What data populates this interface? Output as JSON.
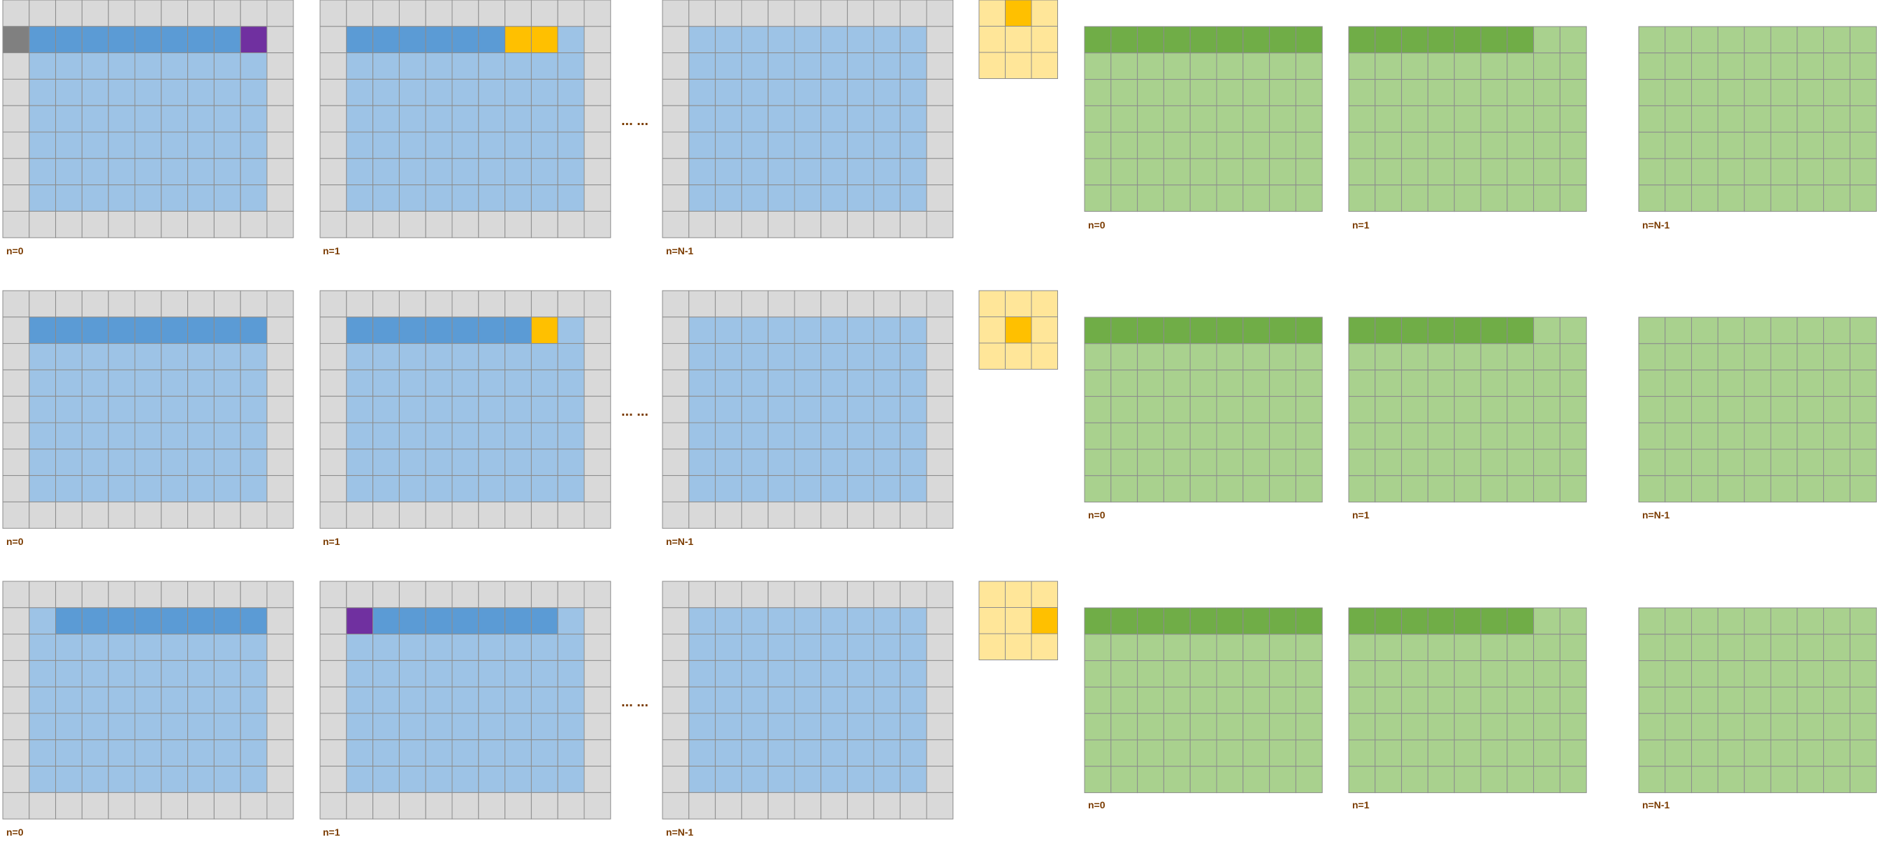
{
  "colors": {
    "pad": "#d9d9d9",
    "input_light": "#9dc3e6",
    "input_dark": "#5b9bd5",
    "kernel_light": "#ffe699",
    "kernel_active": "#ffc000",
    "output_light": "#a9d18e",
    "output_dark": "#70ad47",
    "purple": "#7030a0",
    "gray": "#808080",
    "grid_line": "#8c8c8c",
    "text": "#7a3b00"
  },
  "rows": [
    {
      "input_labels": [
        "n=0",
        "n=1",
        "n=N-1"
      ],
      "output_labels": [
        "n=0",
        "n=1",
        "n=N-1"
      ],
      "ellipsis": "... ...",
      "kernel_active": [
        0,
        1
      ],
      "in0_highlight": {
        "dark_from": 1,
        "dark_to": 8,
        "purple": 9,
        "gray": 0
      },
      "in1_highlight": {
        "dark_from": 1,
        "dark_to": 6,
        "yellow": [
          7,
          8
        ],
        "purple": null
      }
    },
    {
      "input_labels": [
        "n=0",
        "n=1",
        "n=N-1"
      ],
      "output_labels": [
        "n=0",
        "n=1",
        "n=N-1"
      ],
      "ellipsis": "... ...",
      "kernel_active": [
        1,
        1
      ],
      "in0_highlight": {
        "dark_from": 1,
        "dark_to": 9,
        "purple": null,
        "gray": null
      },
      "in1_highlight": {
        "dark_from": 1,
        "dark_to": 7,
        "yellow": [
          8
        ],
        "purple": null
      }
    },
    {
      "input_labels": [
        "n=0",
        "n=1",
        "n=N-1"
      ],
      "output_labels": [
        "n=0",
        "n=1",
        "n=N-1"
      ],
      "ellipsis": "... ...",
      "kernel_active": [
        1,
        2
      ],
      "in0_highlight": {
        "dark_from": 2,
        "dark_to": 9,
        "purple": null,
        "gray": null
      },
      "in1_highlight": {
        "dark_from": 2,
        "dark_to": 8,
        "yellow": [],
        "purple": 1
      }
    }
  ]
}
